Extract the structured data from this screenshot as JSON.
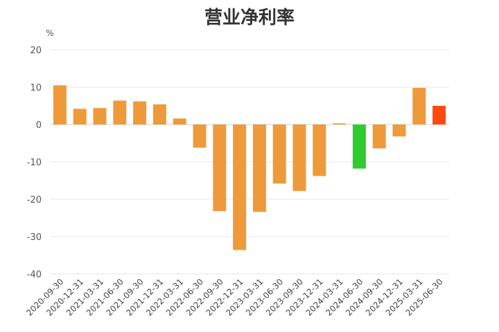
{
  "chart_data": {
    "type": "bar",
    "title": "营业净利率",
    "ylabel": "%",
    "xlabel": "",
    "ylim": [
      -40,
      20
    ],
    "yticks": [
      20,
      10,
      0,
      -10,
      -20,
      -30,
      -40
    ],
    "grid": true,
    "categories": [
      "2020-09-30",
      "2020-12-31",
      "2021-03-31",
      "2021-06-30",
      "2021-09-30",
      "2021-12-31",
      "2022-03-31",
      "2022-06-30",
      "2022-09-30",
      "2022-12-31",
      "2023-03-31",
      "2023-06-30",
      "2023-09-30",
      "2023-12-31",
      "2024-03-31",
      "2024-06-30",
      "2024-09-30",
      "2024-12-31",
      "2025-03-31",
      "2025-06-30"
    ],
    "values": [
      10.5,
      4.2,
      4.4,
      6.4,
      6.2,
      5.4,
      1.6,
      -6.2,
      -23.2,
      -33.6,
      -23.4,
      -15.8,
      -17.8,
      -13.8,
      0.3,
      -11.8,
      -6.4,
      -3.2,
      9.8,
      5.0
    ],
    "colors": {
      "default": "#EE9A3A",
      "highlight_low": "#2ECC2E",
      "latest": "#FF4A0F"
    },
    "bar_colors": [
      "default",
      "default",
      "default",
      "default",
      "default",
      "default",
      "default",
      "default",
      "default",
      "default",
      "default",
      "default",
      "default",
      "default",
      "default",
      "highlight_low",
      "default",
      "default",
      "default",
      "latest"
    ]
  }
}
